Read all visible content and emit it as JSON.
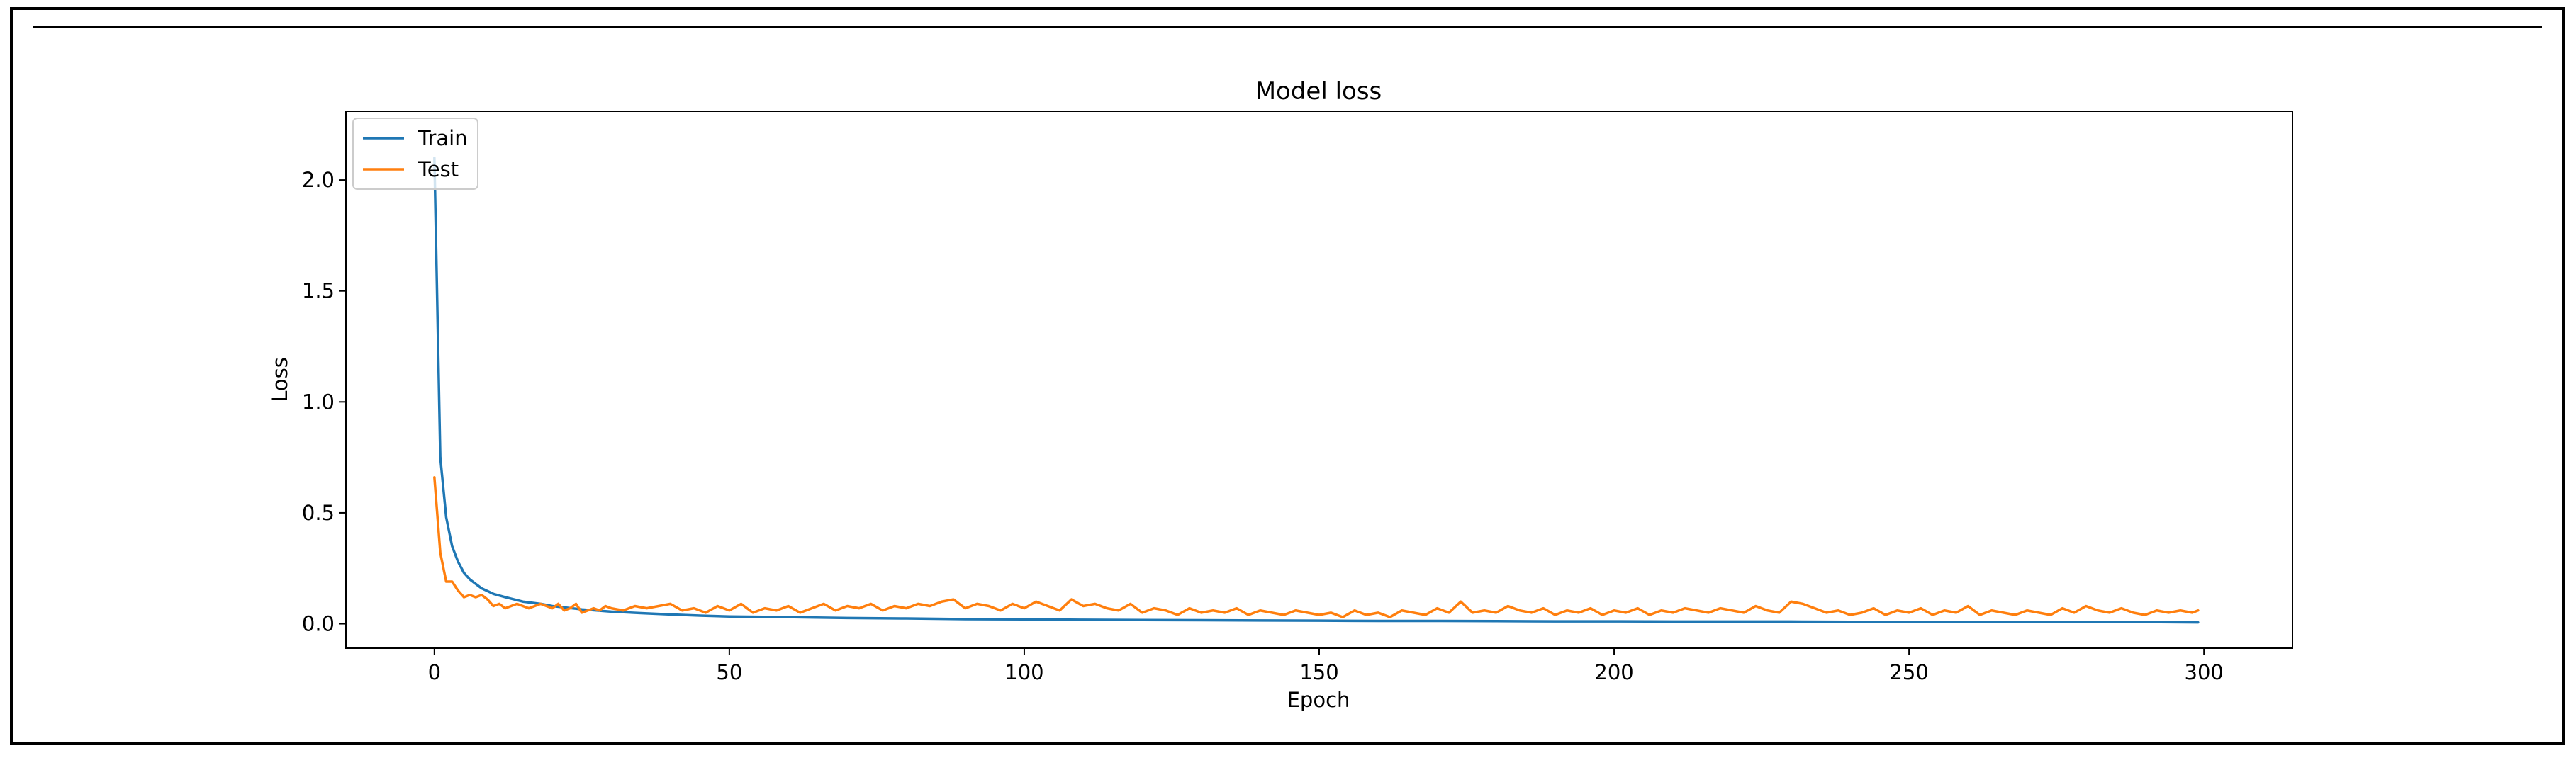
{
  "chart_data": {
    "type": "line",
    "title": "Model loss",
    "xlabel": "Epoch",
    "ylabel": "Loss",
    "xlim": [
      -15,
      315
    ],
    "ylim": [
      -0.11,
      2.31
    ],
    "xticks": [
      0,
      50,
      100,
      150,
      200,
      250,
      300
    ],
    "yticks": [
      0.0,
      0.5,
      1.0,
      1.5,
      2.0
    ],
    "xtick_labels": [
      "0",
      "50",
      "100",
      "150",
      "200",
      "250",
      "300"
    ],
    "ytick_labels": [
      "0.0",
      "0.5",
      "1.0",
      "1.5",
      "2.0"
    ],
    "grid": false,
    "legend_position": "top-left",
    "colors": {
      "train": "#1f77b4",
      "test": "#ff7f0e"
    },
    "series": [
      {
        "name": "Train",
        "color": "#1f77b4",
        "points": [
          [
            0,
            2.1
          ],
          [
            1,
            0.75
          ],
          [
            2,
            0.48
          ],
          [
            3,
            0.35
          ],
          [
            4,
            0.28
          ],
          [
            5,
            0.23
          ],
          [
            6,
            0.2
          ],
          [
            7,
            0.18
          ],
          [
            8,
            0.16
          ],
          [
            10,
            0.135
          ],
          [
            12,
            0.12
          ],
          [
            15,
            0.1
          ],
          [
            18,
            0.09
          ],
          [
            20,
            0.08
          ],
          [
            25,
            0.065
          ],
          [
            30,
            0.055
          ],
          [
            35,
            0.048
          ],
          [
            40,
            0.042
          ],
          [
            45,
            0.037
          ],
          [
            50,
            0.033
          ],
          [
            60,
            0.03
          ],
          [
            70,
            0.026
          ],
          [
            80,
            0.024
          ],
          [
            90,
            0.021
          ],
          [
            100,
            0.02
          ],
          [
            110,
            0.018
          ],
          [
            120,
            0.017
          ],
          [
            130,
            0.016
          ],
          [
            140,
            0.015
          ],
          [
            150,
            0.014
          ],
          [
            160,
            0.013
          ],
          [
            170,
            0.013
          ],
          [
            180,
            0.012
          ],
          [
            190,
            0.011
          ],
          [
            200,
            0.011
          ],
          [
            210,
            0.01
          ],
          [
            220,
            0.01
          ],
          [
            230,
            0.01
          ],
          [
            240,
            0.009
          ],
          [
            250,
            0.009
          ],
          [
            260,
            0.009
          ],
          [
            270,
            0.008
          ],
          [
            280,
            0.008
          ],
          [
            290,
            0.008
          ],
          [
            299,
            0.006
          ]
        ]
      },
      {
        "name": "Test",
        "color": "#ff7f0e",
        "points": [
          [
            0,
            0.66
          ],
          [
            1,
            0.32
          ],
          [
            2,
            0.19
          ],
          [
            3,
            0.19
          ],
          [
            4,
            0.15
          ],
          [
            5,
            0.12
          ],
          [
            6,
            0.13
          ],
          [
            7,
            0.12
          ],
          [
            8,
            0.13
          ],
          [
            9,
            0.11
          ],
          [
            10,
            0.08
          ],
          [
            11,
            0.09
          ],
          [
            12,
            0.07
          ],
          [
            13,
            0.08
          ],
          [
            14,
            0.09
          ],
          [
            15,
            0.08
          ],
          [
            16,
            0.07
          ],
          [
            17,
            0.08
          ],
          [
            18,
            0.09
          ],
          [
            19,
            0.08
          ],
          [
            20,
            0.07
          ],
          [
            21,
            0.09
          ],
          [
            22,
            0.06
          ],
          [
            23,
            0.07
          ],
          [
            24,
            0.09
          ],
          [
            25,
            0.05
          ],
          [
            26,
            0.06
          ],
          [
            27,
            0.07
          ],
          [
            28,
            0.06
          ],
          [
            29,
            0.08
          ],
          [
            30,
            0.07
          ],
          [
            32,
            0.06
          ],
          [
            34,
            0.08
          ],
          [
            36,
            0.07
          ],
          [
            38,
            0.08
          ],
          [
            40,
            0.09
          ],
          [
            42,
            0.06
          ],
          [
            44,
            0.07
          ],
          [
            46,
            0.05
          ],
          [
            48,
            0.08
          ],
          [
            50,
            0.06
          ],
          [
            52,
            0.09
          ],
          [
            54,
            0.05
          ],
          [
            56,
            0.07
          ],
          [
            58,
            0.06
          ],
          [
            60,
            0.08
          ],
          [
            62,
            0.05
          ],
          [
            64,
            0.07
          ],
          [
            66,
            0.09
          ],
          [
            68,
            0.06
          ],
          [
            70,
            0.08
          ],
          [
            72,
            0.07
          ],
          [
            74,
            0.09
          ],
          [
            76,
            0.06
          ],
          [
            78,
            0.08
          ],
          [
            80,
            0.07
          ],
          [
            82,
            0.09
          ],
          [
            84,
            0.08
          ],
          [
            86,
            0.1
          ],
          [
            88,
            0.11
          ],
          [
            90,
            0.07
          ],
          [
            92,
            0.09
          ],
          [
            94,
            0.08
          ],
          [
            96,
            0.06
          ],
          [
            98,
            0.09
          ],
          [
            100,
            0.07
          ],
          [
            102,
            0.1
          ],
          [
            104,
            0.08
          ],
          [
            106,
            0.06
          ],
          [
            108,
            0.11
          ],
          [
            110,
            0.08
          ],
          [
            112,
            0.09
          ],
          [
            114,
            0.07
          ],
          [
            116,
            0.06
          ],
          [
            118,
            0.09
          ],
          [
            120,
            0.05
          ],
          [
            122,
            0.07
          ],
          [
            124,
            0.06
          ],
          [
            126,
            0.04
          ],
          [
            128,
            0.07
          ],
          [
            130,
            0.05
          ],
          [
            132,
            0.06
          ],
          [
            134,
            0.05
          ],
          [
            136,
            0.07
          ],
          [
            138,
            0.04
          ],
          [
            140,
            0.06
          ],
          [
            142,
            0.05
          ],
          [
            144,
            0.04
          ],
          [
            146,
            0.06
          ],
          [
            148,
            0.05
          ],
          [
            150,
            0.04
          ],
          [
            152,
            0.05
          ],
          [
            154,
            0.03
          ],
          [
            156,
            0.06
          ],
          [
            158,
            0.04
          ],
          [
            160,
            0.05
          ],
          [
            162,
            0.03
          ],
          [
            164,
            0.06
          ],
          [
            166,
            0.05
          ],
          [
            168,
            0.04
          ],
          [
            170,
            0.07
          ],
          [
            172,
            0.05
          ],
          [
            174,
            0.1
          ],
          [
            176,
            0.05
          ],
          [
            178,
            0.06
          ],
          [
            180,
            0.05
          ],
          [
            182,
            0.08
          ],
          [
            184,
            0.06
          ],
          [
            186,
            0.05
          ],
          [
            188,
            0.07
          ],
          [
            190,
            0.04
          ],
          [
            192,
            0.06
          ],
          [
            194,
            0.05
          ],
          [
            196,
            0.07
          ],
          [
            198,
            0.04
          ],
          [
            200,
            0.06
          ],
          [
            202,
            0.05
          ],
          [
            204,
            0.07
          ],
          [
            206,
            0.04
          ],
          [
            208,
            0.06
          ],
          [
            210,
            0.05
          ],
          [
            212,
            0.07
          ],
          [
            214,
            0.06
          ],
          [
            216,
            0.05
          ],
          [
            218,
            0.07
          ],
          [
            220,
            0.06
          ],
          [
            222,
            0.05
          ],
          [
            224,
            0.08
          ],
          [
            226,
            0.06
          ],
          [
            228,
            0.05
          ],
          [
            230,
            0.1
          ],
          [
            232,
            0.09
          ],
          [
            234,
            0.07
          ],
          [
            236,
            0.05
          ],
          [
            238,
            0.06
          ],
          [
            240,
            0.04
          ],
          [
            242,
            0.05
          ],
          [
            244,
            0.07
          ],
          [
            246,
            0.04
          ],
          [
            248,
            0.06
          ],
          [
            250,
            0.05
          ],
          [
            252,
            0.07
          ],
          [
            254,
            0.04
          ],
          [
            256,
            0.06
          ],
          [
            258,
            0.05
          ],
          [
            260,
            0.08
          ],
          [
            262,
            0.04
          ],
          [
            264,
            0.06
          ],
          [
            266,
            0.05
          ],
          [
            268,
            0.04
          ],
          [
            270,
            0.06
          ],
          [
            272,
            0.05
          ],
          [
            274,
            0.04
          ],
          [
            276,
            0.07
          ],
          [
            278,
            0.05
          ],
          [
            280,
            0.08
          ],
          [
            282,
            0.06
          ],
          [
            284,
            0.05
          ],
          [
            286,
            0.07
          ],
          [
            288,
            0.05
          ],
          [
            290,
            0.04
          ],
          [
            292,
            0.06
          ],
          [
            294,
            0.05
          ],
          [
            296,
            0.06
          ],
          [
            298,
            0.05
          ],
          [
            299,
            0.06
          ]
        ]
      }
    ]
  }
}
